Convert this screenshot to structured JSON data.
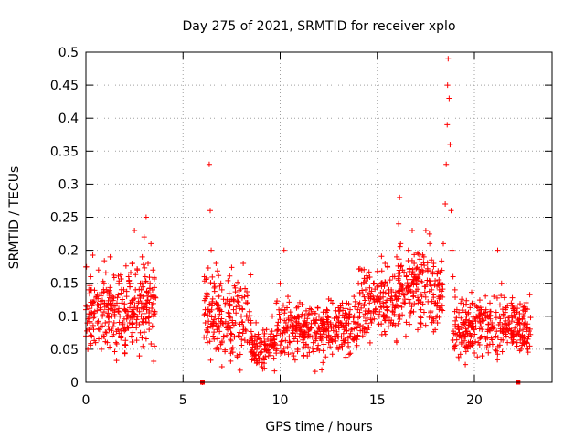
{
  "chart_data": {
    "type": "scatter",
    "title": "Day 275 of 2021, SRMTID for receiver xplo",
    "xlabel": "GPS time / hours",
    "ylabel": "SRMTID / TECUs",
    "xlim": [
      0,
      24
    ],
    "ylim": [
      0,
      0.5
    ],
    "x_ticks": [
      0,
      5,
      10,
      15,
      20
    ],
    "x_tick_labels": [
      "0",
      "5",
      "10",
      "15",
      "20"
    ],
    "y_ticks": [
      0,
      0.05,
      0.1,
      0.15,
      0.2,
      0.25,
      0.3,
      0.35,
      0.4,
      0.45,
      0.5
    ],
    "y_tick_labels": [
      "0",
      "0.05",
      "0.1",
      "0.15",
      "0.2",
      "0.25",
      "0.3",
      "0.35",
      "0.4",
      "0.45",
      "0.5"
    ],
    "grid": true,
    "marker": "+",
    "series": [
      {
        "name": "SRMTID",
        "color": "#ff0000",
        "points": [
          [
            0.0,
            0.11
          ],
          [
            0.1,
            0.05
          ],
          [
            0.15,
            0.14
          ],
          [
            0.2,
            0.09
          ],
          [
            0.25,
            0.16
          ],
          [
            0.3,
            0.07
          ],
          [
            0.35,
            0.12
          ],
          [
            0.4,
            0.08
          ],
          [
            0.45,
            0.1
          ],
          [
            0.5,
            0.06
          ],
          [
            0.55,
            0.13
          ],
          [
            0.6,
            0.09
          ],
          [
            0.65,
            0.17
          ],
          [
            0.7,
            0.08
          ],
          [
            0.75,
            0.11
          ],
          [
            0.8,
            0.05
          ],
          [
            0.85,
            0.1
          ],
          [
            0.9,
            0.07
          ],
          [
            0.95,
            0.12
          ],
          [
            1.0,
            0.09
          ],
          [
            1.05,
            0.14
          ],
          [
            1.1,
            0.06
          ],
          [
            1.15,
            0.11
          ],
          [
            1.2,
            0.08
          ],
          [
            1.25,
            0.19
          ],
          [
            1.3,
            0.1
          ],
          [
            1.35,
            0.07
          ],
          [
            1.4,
            0.13
          ],
          [
            1.45,
            0.09
          ],
          [
            1.5,
            0.11
          ],
          [
            1.55,
            0.06
          ],
          [
            1.6,
            0.12
          ],
          [
            1.65,
            0.08
          ],
          [
            1.7,
            0.15
          ],
          [
            1.75,
            0.1
          ],
          [
            1.8,
            0.07
          ],
          [
            1.85,
            0.12
          ],
          [
            1.9,
            0.09
          ],
          [
            1.95,
            0.14
          ],
          [
            2.0,
            0.11
          ],
          [
            2.05,
            0.08
          ],
          [
            2.1,
            0.13
          ],
          [
            2.15,
            0.1
          ],
          [
            2.2,
            0.16
          ],
          [
            2.25,
            0.09
          ],
          [
            2.3,
            0.12
          ],
          [
            2.35,
            0.07
          ],
          [
            2.4,
            0.18
          ],
          [
            2.45,
            0.11
          ],
          [
            2.5,
            0.23
          ],
          [
            2.55,
            0.14
          ],
          [
            2.6,
            0.09
          ],
          [
            2.65,
            0.17
          ],
          [
            2.7,
            0.12
          ],
          [
            2.75,
            0.04
          ],
          [
            2.8,
            0.15
          ],
          [
            2.85,
            0.1
          ],
          [
            2.9,
            0.19
          ],
          [
            2.95,
            0.13
          ],
          [
            3.0,
            0.22
          ],
          [
            3.05,
            0.16
          ],
          [
            3.1,
            0.25
          ],
          [
            3.15,
            0.12
          ],
          [
            3.2,
            0.18
          ],
          [
            3.25,
            0.09
          ],
          [
            3.3,
            0.15
          ],
          [
            3.35,
            0.21
          ],
          [
            3.4,
            0.13
          ],
          [
            3.45,
            0.17
          ],
          [
            3.5,
            0.1
          ],
          [
            6.0,
            0.0
          ],
          [
            6.1,
            0.16
          ],
          [
            6.15,
            0.09
          ],
          [
            6.2,
            0.13
          ],
          [
            6.25,
            0.06
          ],
          [
            6.3,
            0.11
          ],
          [
            6.35,
            0.33
          ],
          [
            6.4,
            0.26
          ],
          [
            6.45,
            0.2
          ],
          [
            6.5,
            0.12
          ],
          [
            6.55,
            0.07
          ],
          [
            6.6,
            0.15
          ],
          [
            6.65,
            0.1
          ],
          [
            6.7,
            0.18
          ],
          [
            6.75,
            0.08
          ],
          [
            6.8,
            0.13
          ],
          [
            6.85,
            0.05
          ],
          [
            6.9,
            0.11
          ],
          [
            6.95,
            0.09
          ],
          [
            7.0,
            0.14
          ],
          [
            7.1,
            0.07
          ],
          [
            7.2,
            0.12
          ],
          [
            7.3,
            0.08
          ],
          [
            7.4,
            0.1
          ],
          [
            7.5,
            0.05
          ],
          [
            7.6,
            0.11
          ],
          [
            7.7,
            0.09
          ],
          [
            7.8,
            0.13
          ],
          [
            7.9,
            0.07
          ],
          [
            8.0,
            0.1
          ],
          [
            8.1,
            0.18
          ],
          [
            8.2,
            0.08
          ],
          [
            8.3,
            0.12
          ],
          [
            8.4,
            0.06
          ],
          [
            8.5,
            0.09
          ],
          [
            8.6,
            0.04
          ],
          [
            8.7,
            0.07
          ],
          [
            8.8,
            0.05
          ],
          [
            8.9,
            0.03
          ],
          [
            9.0,
            0.06
          ],
          [
            9.1,
            0.02
          ],
          [
            9.2,
            0.05
          ],
          [
            9.3,
            0.08
          ],
          [
            9.4,
            0.04
          ],
          [
            9.5,
            0.07
          ],
          [
            9.6,
            0.1
          ],
          [
            9.7,
            0.06
          ],
          [
            9.8,
            0.12
          ],
          [
            9.9,
            0.08
          ],
          [
            10.0,
            0.15
          ],
          [
            10.1,
            0.11
          ],
          [
            10.2,
            0.2
          ],
          [
            10.3,
            0.09
          ],
          [
            10.4,
            0.13
          ],
          [
            10.5,
            0.06
          ],
          [
            10.6,
            0.1
          ],
          [
            10.7,
            0.04
          ],
          [
            10.8,
            0.08
          ],
          [
            10.9,
            0.05
          ],
          [
            11.0,
            0.07
          ],
          [
            11.1,
            0.1
          ],
          [
            11.2,
            0.06
          ],
          [
            11.3,
            0.09
          ],
          [
            11.4,
            0.04
          ],
          [
            11.5,
            0.08
          ],
          [
            11.6,
            0.11
          ],
          [
            11.7,
            0.06
          ],
          [
            11.8,
            0.09
          ],
          [
            11.9,
            0.05
          ],
          [
            12.0,
            0.1
          ],
          [
            12.1,
            0.07
          ],
          [
            12.2,
            0.03
          ],
          [
            12.3,
            0.08
          ],
          [
            12.4,
            0.11
          ],
          [
            12.5,
            0.06
          ],
          [
            12.6,
            0.09
          ],
          [
            12.7,
            0.12
          ],
          [
            12.8,
            0.07
          ],
          [
            12.9,
            0.1
          ],
          [
            13.0,
            0.05
          ],
          [
            13.1,
            0.09
          ],
          [
            13.2,
            0.12
          ],
          [
            13.3,
            0.08
          ],
          [
            13.4,
            0.1
          ],
          [
            13.5,
            0.06
          ],
          [
            13.6,
            0.11
          ],
          [
            13.7,
            0.08
          ],
          [
            13.8,
            0.13
          ],
          [
            13.9,
            0.09
          ],
          [
            14.0,
            0.07
          ],
          [
            14.1,
            0.12
          ],
          [
            14.2,
            0.17
          ],
          [
            14.3,
            0.1
          ],
          [
            14.4,
            0.14
          ],
          [
            14.5,
            0.08
          ],
          [
            14.6,
            0.12
          ],
          [
            14.7,
            0.09
          ],
          [
            14.8,
            0.15
          ],
          [
            14.9,
            0.11
          ],
          [
            15.0,
            0.13
          ],
          [
            15.1,
            0.1
          ],
          [
            15.2,
            0.15
          ],
          [
            15.3,
            0.12
          ],
          [
            15.4,
            0.18
          ],
          [
            15.5,
            0.11
          ],
          [
            15.6,
            0.14
          ],
          [
            15.7,
            0.09
          ],
          [
            15.8,
            0.16
          ],
          [
            15.9,
            0.13
          ],
          [
            16.0,
            0.19
          ],
          [
            16.1,
            0.24
          ],
          [
            16.15,
            0.28
          ],
          [
            16.2,
            0.21
          ],
          [
            16.3,
            0.17
          ],
          [
            16.4,
            0.12
          ],
          [
            16.5,
            0.16
          ],
          [
            16.6,
            0.2
          ],
          [
            16.7,
            0.14
          ],
          [
            16.8,
            0.23
          ],
          [
            16.9,
            0.18
          ],
          [
            17.0,
            0.15
          ],
          [
            17.1,
            0.12
          ],
          [
            17.2,
            0.09
          ],
          [
            17.3,
            0.13
          ],
          [
            17.4,
            0.19
          ],
          [
            17.5,
            0.23
          ],
          [
            17.6,
            0.17
          ],
          [
            17.7,
            0.21
          ],
          [
            17.8,
            0.14
          ],
          [
            17.9,
            0.18
          ],
          [
            18.0,
            0.12
          ],
          [
            18.1,
            0.09
          ],
          [
            18.2,
            0.14
          ],
          [
            18.3,
            0.11
          ],
          [
            18.4,
            0.21
          ],
          [
            18.5,
            0.27
          ],
          [
            18.55,
            0.33
          ],
          [
            18.6,
            0.39
          ],
          [
            18.62,
            0.45
          ],
          [
            18.65,
            0.49
          ],
          [
            18.7,
            0.43
          ],
          [
            18.75,
            0.36
          ],
          [
            18.8,
            0.26
          ],
          [
            18.85,
            0.2
          ],
          [
            18.9,
            0.16
          ],
          [
            19.0,
            0.14
          ],
          [
            19.1,
            0.11
          ],
          [
            19.2,
            0.08
          ],
          [
            19.3,
            0.12
          ],
          [
            19.4,
            0.09
          ],
          [
            19.5,
            0.07
          ],
          [
            19.6,
            0.1
          ],
          [
            19.7,
            0.06
          ],
          [
            19.8,
            0.09
          ],
          [
            19.9,
            0.12
          ],
          [
            20.0,
            0.08
          ],
          [
            20.1,
            0.1
          ],
          [
            20.2,
            0.06
          ],
          [
            20.3,
            0.09
          ],
          [
            20.4,
            0.04
          ],
          [
            20.5,
            0.07
          ],
          [
            20.6,
            0.11
          ],
          [
            20.7,
            0.08
          ],
          [
            20.8,
            0.12
          ],
          [
            20.9,
            0.09
          ],
          [
            21.0,
            0.13
          ],
          [
            21.1,
            0.07
          ],
          [
            21.2,
            0.2
          ],
          [
            21.3,
            0.1
          ],
          [
            21.4,
            0.15
          ],
          [
            21.5,
            0.08
          ],
          [
            21.6,
            0.11
          ],
          [
            21.7,
            0.06
          ],
          [
            21.8,
            0.09
          ],
          [
            21.9,
            0.12
          ],
          [
            22.0,
            0.07
          ],
          [
            22.1,
            0.1
          ],
          [
            22.2,
            0.06
          ],
          [
            22.3,
            0.09
          ],
          [
            22.4,
            0.05
          ],
          [
            22.5,
            0.08
          ],
          [
            22.6,
            0.11
          ],
          [
            22.7,
            0.06
          ],
          [
            22.75,
            0.05
          ],
          [
            22.8,
            0.07
          ]
        ],
        "clusters": [
          {
            "x_range": [
              0.0,
              3.6
            ],
            "mean": 0.11,
            "spread": 0.05,
            "count": 260
          },
          {
            "x_range": [
              6.05,
              8.5
            ],
            "mean": 0.1,
            "spread": 0.05,
            "count": 170
          },
          {
            "x_range": [
              8.5,
              9.8
            ],
            "mean": 0.055,
            "spread": 0.025,
            "count": 90
          },
          {
            "x_range": [
              9.8,
              14.0
            ],
            "mean": 0.08,
            "spread": 0.035,
            "count": 300
          },
          {
            "x_range": [
              14.0,
              16.0
            ],
            "mean": 0.12,
            "spread": 0.04,
            "count": 150
          },
          {
            "x_range": [
              16.0,
              18.4
            ],
            "mean": 0.14,
            "spread": 0.05,
            "count": 190
          },
          {
            "x_range": [
              18.9,
              22.9
            ],
            "mean": 0.085,
            "spread": 0.035,
            "count": 300
          }
        ],
        "zero_markers": [
          6.0,
          22.25
        ]
      }
    ]
  }
}
